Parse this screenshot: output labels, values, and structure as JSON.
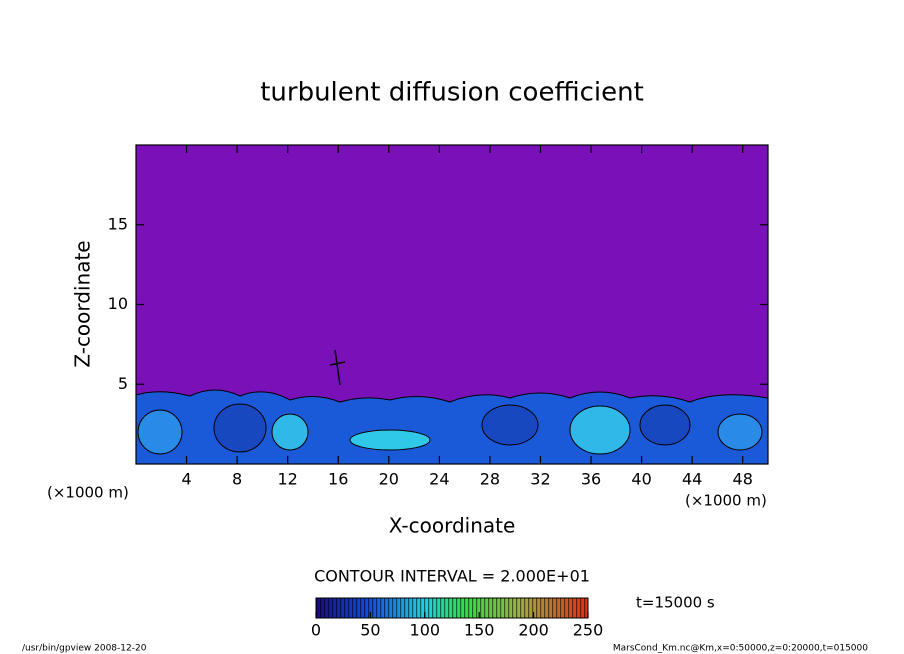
{
  "chart_data": {
    "type": "contour",
    "title": "turbulent diffusion coefficient",
    "xlabel": "X-coordinate",
    "ylabel": "Z-coordinate",
    "x_unit": "(×1000 m)",
    "y_unit": "(×1000 m)",
    "xlim": [
      0,
      50
    ],
    "ylim": [
      0,
      20
    ],
    "xticks": [
      4,
      8,
      12,
      16,
      20,
      24,
      28,
      32,
      36,
      40,
      44,
      48
    ],
    "yticks": [
      5,
      10,
      15
    ],
    "contour_interval": "CONTOUR INTERVAL = 2.000E+01",
    "time": "t=15000 s",
    "colorbar": {
      "lim": [
        0,
        250
      ],
      "ticks": [
        0,
        50,
        100,
        150,
        200,
        250
      ]
    },
    "footer_left": "/usr/bin/gpview   2008-12-20",
    "footer_right": "MarsCond_Km.nc@Km,x=0:50000,z=0:20000,t=015000"
  }
}
